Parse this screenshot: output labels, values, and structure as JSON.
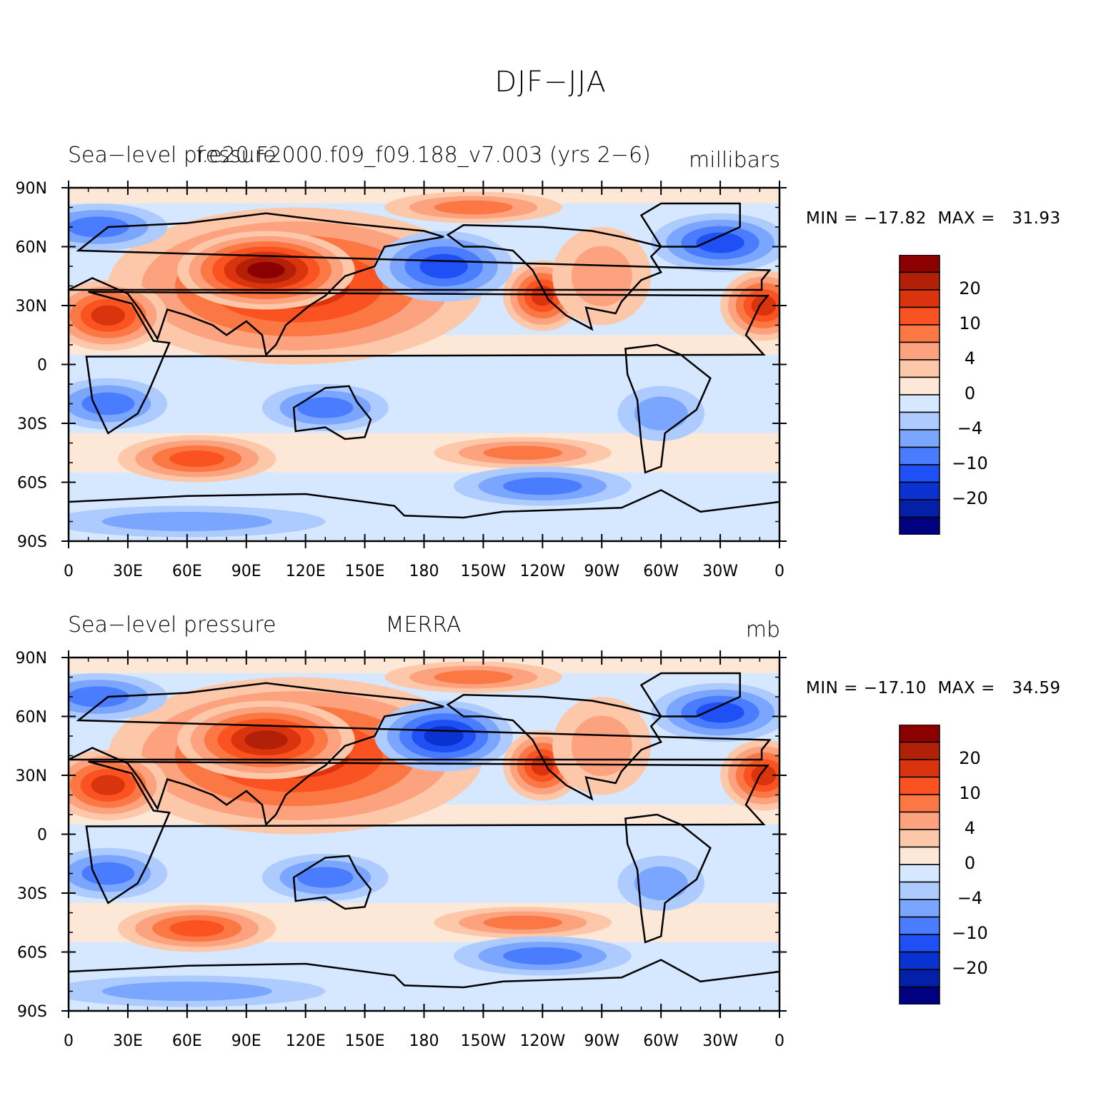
{
  "title": "DJF−JJA",
  "panels": [
    {
      "left_label": "Sea−level pressure",
      "center_label": "f.e20.F2000.f09_f09.188_v7.003 (yrs 2−6)",
      "right_label": "millibars",
      "stats": "MIN = −17.82  MAX =   31.93"
    },
    {
      "left_label": "Sea−level pressure",
      "center_label": "MERRA",
      "right_label": "mb",
      "stats": "MIN = −17.10  MAX =   34.59"
    }
  ],
  "map": {
    "lat_ticks": [
      "90N",
      "60N",
      "30N",
      "0",
      "30S",
      "60S",
      "90S"
    ],
    "lon_ticks": [
      "0",
      "30E",
      "60E",
      "90E",
      "120E",
      "150E",
      "180",
      "150W",
      "120W",
      "90W",
      "60W",
      "30W",
      "0"
    ]
  },
  "colorbar": {
    "labels": [
      "20",
      "10",
      "4",
      "0",
      "−4",
      "−10",
      "−20"
    ],
    "colors": [
      "#8b0000",
      "#b22008",
      "#d9340e",
      "#fa5220",
      "#fb7845",
      "#fca27e",
      "#fdc8aa",
      "#fde8d8",
      "#d6e8ff",
      "#aecbff",
      "#7aa6ff",
      "#4a7cff",
      "#1f50f5",
      "#0a32d0",
      "#0520a8",
      "#000080"
    ]
  },
  "chart_data": {
    "type": "heatmap",
    "title": "DJF−JJA",
    "variable": "Sea−level pressure",
    "panels": [
      {
        "name": "f.e20.F2000.f09_f09.188_v7.003 (yrs 2−6)",
        "units": "millibars",
        "min": -17.82,
        "max": 31.93
      },
      {
        "name": "MERRA",
        "units": "mb",
        "min": -17.1,
        "max": 34.59
      }
    ],
    "x_ticks": [
      "0",
      "30E",
      "60E",
      "90E",
      "120E",
      "150E",
      "180",
      "150W",
      "120W",
      "90W",
      "60W",
      "30W",
      "0"
    ],
    "y_ticks": [
      "90N",
      "60N",
      "30N",
      "0",
      "30S",
      "60S",
      "90S"
    ],
    "xlim": [
      0,
      360
    ],
    "ylim": [
      -90,
      90
    ],
    "contour_levels": [
      -25,
      -20,
      -15,
      -10,
      -6,
      -4,
      -2,
      0,
      2,
      4,
      6,
      10,
      15,
      20,
      25
    ],
    "colorbar_labels": [
      "20",
      "10",
      "4",
      "0",
      "−4",
      "−10",
      "−20"
    ]
  }
}
